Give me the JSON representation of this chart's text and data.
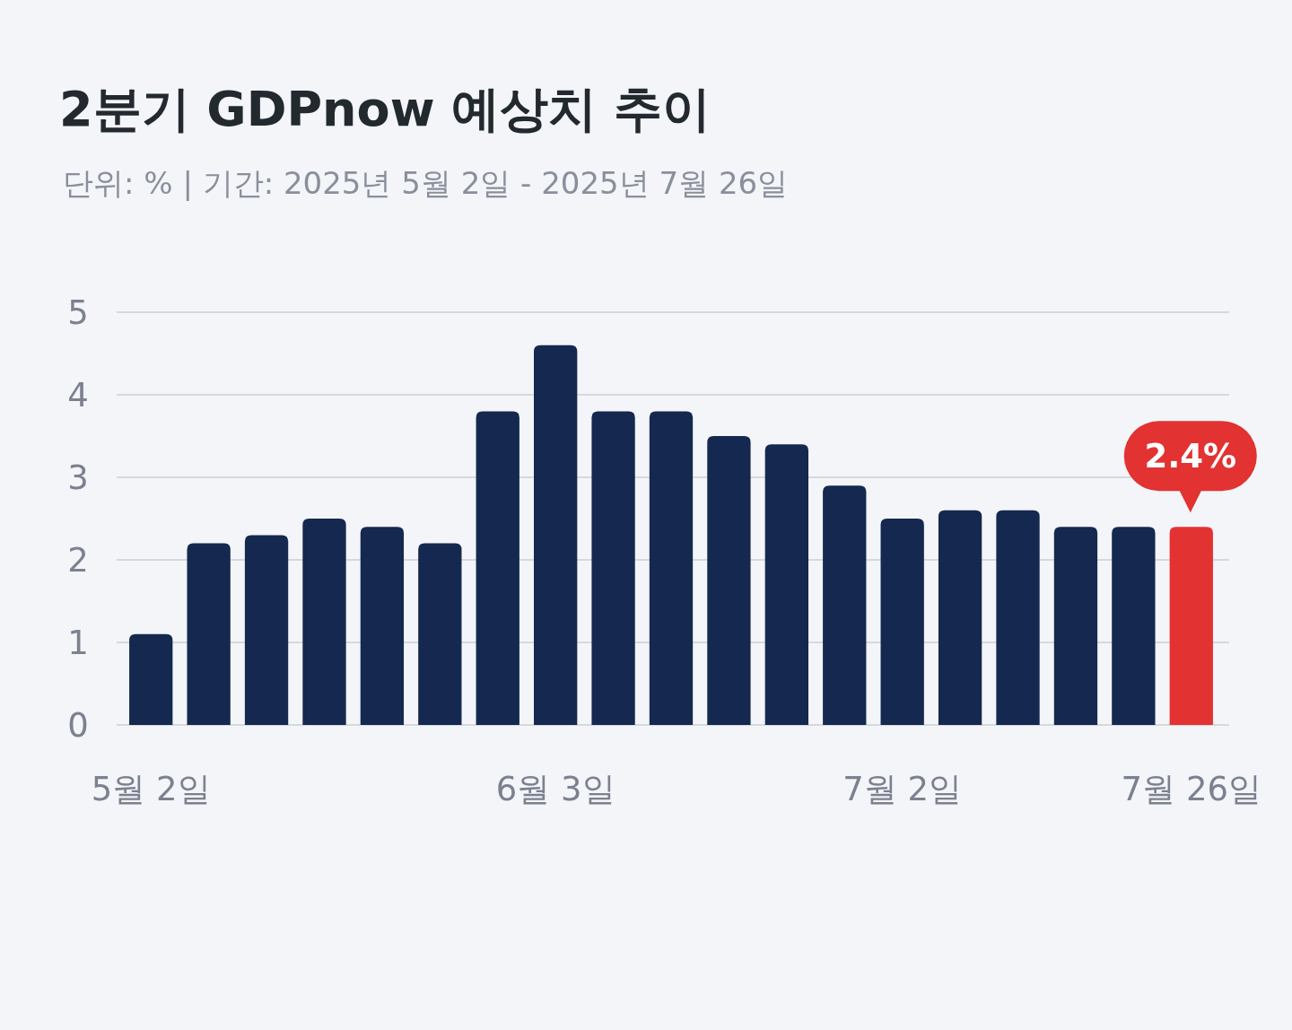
{
  "chart_data": {
    "type": "bar",
    "title": "2분기 GDPnow 예상치 추이",
    "subtitle": "단위: % | 기간: 2025년 5월 2일 - 2025년 7월 26일",
    "categories": [
      "5월 2일",
      null,
      null,
      null,
      null,
      null,
      null,
      "6월 3일",
      null,
      null,
      null,
      null,
      null,
      "7월 2일",
      null,
      null,
      null,
      null,
      "7월 26일"
    ],
    "values": [
      1.1,
      2.2,
      2.3,
      2.5,
      2.4,
      2.2,
      3.8,
      4.6,
      3.8,
      3.8,
      3.5,
      3.4,
      2.9,
      2.5,
      2.6,
      2.6,
      2.4,
      2.4,
      2.4
    ],
    "colors": [
      "#15284f",
      "#15284f",
      "#15284f",
      "#15284f",
      "#15284f",
      "#15284f",
      "#15284f",
      "#15284f",
      "#15284f",
      "#15284f",
      "#15284f",
      "#15284f",
      "#15284f",
      "#15284f",
      "#15284f",
      "#15284f",
      "#15284f",
      "#15284f",
      "#e33232"
    ],
    "value_labels": [
      null,
      null,
      null,
      null,
      null,
      null,
      null,
      null,
      null,
      null,
      null,
      null,
      null,
      null,
      null,
      null,
      null,
      null,
      "2.4%"
    ],
    "ylim": [
      0,
      5
    ],
    "yticks": [
      0,
      1,
      2,
      3,
      4,
      5
    ],
    "grid": "y"
  }
}
